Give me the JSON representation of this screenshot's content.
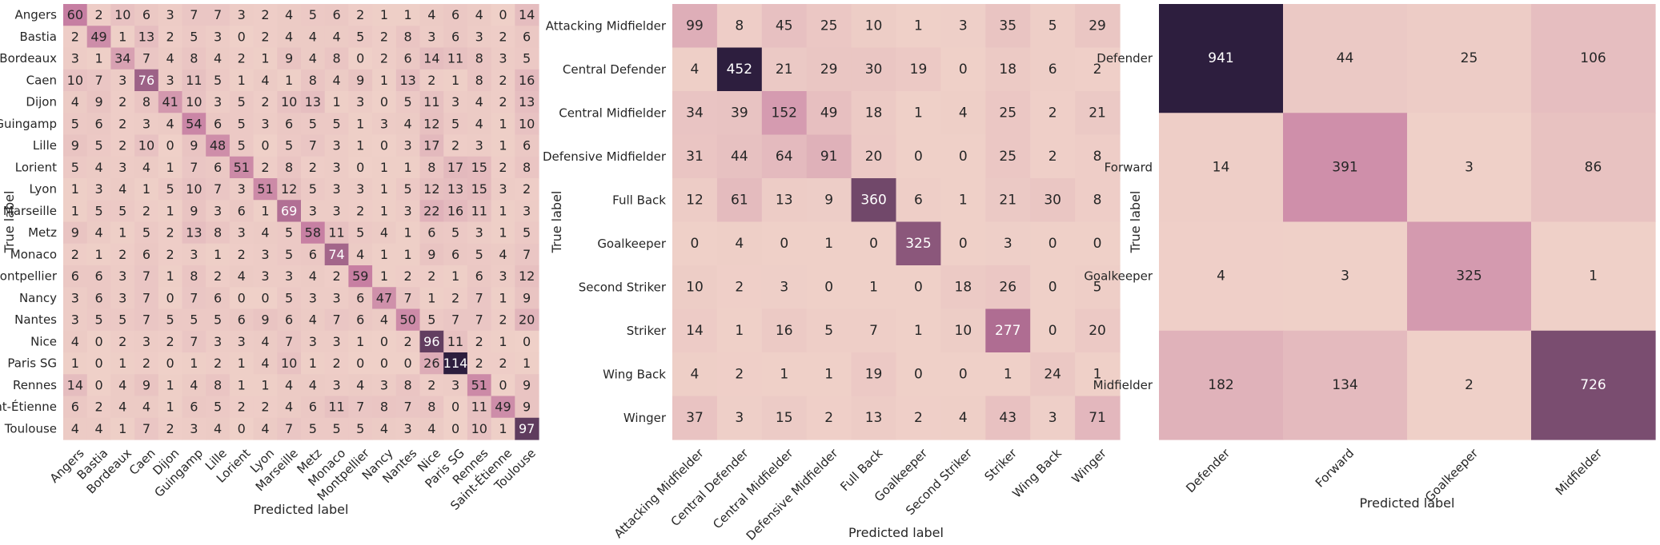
{
  "chart_data": [
    {
      "type": "heatmap",
      "title": "",
      "xlabel": "Predicted label",
      "ylabel": "True label",
      "x_categories": [
        "Angers",
        "Bastia",
        "Bordeaux",
        "Caen",
        "Dijon",
        "Guingamp",
        "Lille",
        "Lorient",
        "Lyon",
        "Marseille",
        "Metz",
        "Monaco",
        "Montpellier",
        "Nancy",
        "Nantes",
        "Nice",
        "Paris SG",
        "Rennes",
        "Saint-Étienne",
        "Toulouse"
      ],
      "y_categories": [
        "Angers",
        "Bastia",
        "Bordeaux",
        "Caen",
        "Dijon",
        "Guingamp",
        "Lille",
        "Lorient",
        "Lyon",
        "Marseille",
        "Metz",
        "Monaco",
        "Montpellier",
        "Nancy",
        "Nantes",
        "Nice",
        "Paris SG",
        "Rennes",
        "Saint-Étienne",
        "Toulouse"
      ],
      "values": [
        [
          60,
          2,
          10,
          6,
          3,
          7,
          7,
          3,
          2,
          4,
          5,
          6,
          2,
          1,
          1,
          4,
          6,
          4,
          0,
          14
        ],
        [
          2,
          49,
          1,
          13,
          2,
          5,
          3,
          0,
          2,
          4,
          4,
          4,
          5,
          2,
          8,
          3,
          6,
          3,
          2,
          6
        ],
        [
          3,
          1,
          34,
          7,
          4,
          8,
          4,
          2,
          1,
          9,
          4,
          8,
          0,
          2,
          6,
          14,
          11,
          8,
          3,
          5
        ],
        [
          10,
          7,
          3,
          76,
          3,
          11,
          5,
          1,
          4,
          1,
          8,
          4,
          9,
          1,
          13,
          2,
          1,
          8,
          2,
          16
        ],
        [
          4,
          9,
          2,
          8,
          41,
          10,
          3,
          5,
          2,
          10,
          13,
          1,
          3,
          0,
          5,
          11,
          3,
          4,
          2,
          13
        ],
        [
          5,
          6,
          2,
          3,
          4,
          54,
          6,
          5,
          3,
          6,
          5,
          5,
          1,
          3,
          4,
          12,
          5,
          4,
          1,
          10
        ],
        [
          9,
          5,
          2,
          10,
          0,
          9,
          48,
          5,
          0,
          5,
          7,
          3,
          1,
          0,
          3,
          17,
          2,
          3,
          1,
          6
        ],
        [
          5,
          4,
          3,
          4,
          1,
          7,
          6,
          51,
          2,
          8,
          2,
          3,
          0,
          1,
          1,
          8,
          17,
          15,
          2,
          8
        ],
        [
          1,
          3,
          4,
          1,
          5,
          10,
          7,
          3,
          51,
          12,
          5,
          3,
          3,
          1,
          5,
          12,
          13,
          15,
          3,
          2
        ],
        [
          1,
          5,
          5,
          2,
          1,
          9,
          3,
          6,
          1,
          69,
          3,
          3,
          2,
          1,
          3,
          22,
          16,
          11,
          1,
          3
        ],
        [
          9,
          4,
          1,
          5,
          2,
          13,
          8,
          3,
          4,
          5,
          58,
          11,
          5,
          4,
          1,
          6,
          5,
          3,
          1,
          5
        ],
        [
          2,
          1,
          2,
          6,
          2,
          3,
          1,
          2,
          3,
          5,
          6,
          74,
          4,
          1,
          1,
          9,
          6,
          5,
          4,
          7
        ],
        [
          6,
          6,
          3,
          7,
          1,
          8,
          2,
          4,
          3,
          3,
          4,
          2,
          59,
          1,
          2,
          2,
          1,
          6,
          3,
          12
        ],
        [
          3,
          6,
          3,
          7,
          0,
          7,
          6,
          0,
          0,
          5,
          3,
          3,
          6,
          47,
          7,
          1,
          2,
          7,
          1,
          9
        ],
        [
          3,
          5,
          5,
          7,
          5,
          5,
          5,
          6,
          9,
          6,
          4,
          7,
          6,
          4,
          50,
          5,
          7,
          7,
          2,
          20
        ],
        [
          4,
          0,
          2,
          3,
          2,
          7,
          3,
          3,
          4,
          7,
          3,
          3,
          1,
          0,
          2,
          96,
          11,
          2,
          1,
          0
        ],
        [
          1,
          0,
          1,
          2,
          0,
          1,
          2,
          1,
          4,
          10,
          1,
          2,
          0,
          0,
          0,
          26,
          114,
          2,
          2,
          1
        ],
        [
          14,
          0,
          4,
          9,
          1,
          4,
          8,
          1,
          1,
          4,
          4,
          3,
          4,
          3,
          8,
          2,
          3,
          51,
          0,
          9
        ],
        [
          6,
          2,
          4,
          4,
          1,
          6,
          5,
          2,
          2,
          4,
          6,
          11,
          7,
          8,
          7,
          8,
          0,
          11,
          49,
          9
        ],
        [
          4,
          4,
          1,
          7,
          2,
          3,
          4,
          0,
          4,
          7,
          5,
          5,
          5,
          4,
          3,
          4,
          0,
          10,
          1,
          97
        ]
      ]
    },
    {
      "type": "heatmap",
      "title": "",
      "xlabel": "Predicted label",
      "ylabel": "True label",
      "x_categories": [
        "Attacking Midfielder",
        "Central Defender",
        "Central Midfielder",
        "Defensive Midfielder",
        "Full Back",
        "Goalkeeper",
        "Second Striker",
        "Striker",
        "Wing Back",
        "Winger"
      ],
      "y_categories": [
        "Attacking Midfielder",
        "Central Defender",
        "Central Midfielder",
        "Defensive Midfielder",
        "Full Back",
        "Goalkeeper",
        "Second Striker",
        "Striker",
        "Wing Back",
        "Winger"
      ],
      "values": [
        [
          99,
          8,
          45,
          25,
          10,
          1,
          3,
          35,
          5,
          29
        ],
        [
          4,
          452,
          21,
          29,
          30,
          19,
          0,
          18,
          6,
          2
        ],
        [
          34,
          39,
          152,
          49,
          18,
          1,
          4,
          25,
          2,
          21
        ],
        [
          31,
          44,
          64,
          91,
          20,
          0,
          0,
          25,
          2,
          8
        ],
        [
          12,
          61,
          13,
          9,
          360,
          6,
          1,
          21,
          30,
          8
        ],
        [
          0,
          4,
          0,
          1,
          0,
          325,
          0,
          3,
          0,
          0
        ],
        [
          10,
          2,
          3,
          0,
          1,
          0,
          18,
          26,
          0,
          5
        ],
        [
          14,
          1,
          16,
          5,
          7,
          1,
          10,
          277,
          0,
          20
        ],
        [
          4,
          2,
          1,
          1,
          19,
          0,
          0,
          1,
          24,
          1
        ],
        [
          37,
          3,
          15,
          2,
          13,
          2,
          4,
          43,
          3,
          71
        ]
      ]
    },
    {
      "type": "heatmap",
      "title": "",
      "xlabel": "Predicted label",
      "ylabel": "True label",
      "x_categories": [
        "Defender",
        "Forward",
        "Goalkeeper",
        "Midfielder"
      ],
      "y_categories": [
        "Defender",
        "Forward",
        "Goalkeeper",
        "Midfielder"
      ],
      "values": [
        [
          941,
          44,
          25,
          106
        ],
        [
          14,
          391,
          3,
          86
        ],
        [
          4,
          3,
          325,
          1
        ],
        [
          182,
          134,
          2,
          726
        ]
      ]
    }
  ],
  "colormap": {
    "low": "#efd0c8",
    "mid": "#c47aa0",
    "high": "#2d1e3e"
  }
}
